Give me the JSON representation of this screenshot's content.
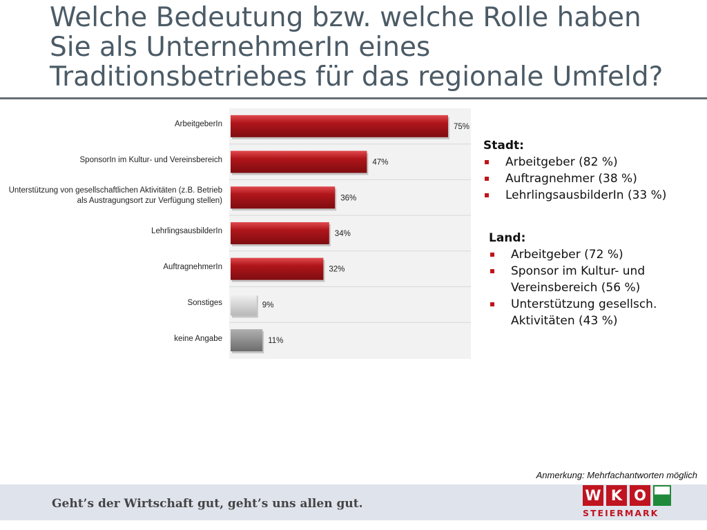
{
  "title": {
    "lines": [
      "Welche Bedeutung bzw. welche Rolle haben",
      "Sie als UnternehmerIn eines",
      "Traditionsbetriebes für das regionale Umfeld?"
    ]
  },
  "chart_data": {
    "type": "bar",
    "orientation": "horizontal",
    "categories": [
      "ArbeitgeberIn",
      "SponsorIn im Kultur- und Vereinsbereich",
      "Unterstützung von gesellschaftlichen Aktivitäten (z.B. Betrieb als Austragungsort zur Verfügung stellen)",
      "LehrlingsausbilderIn",
      "AuftragnehmerIn",
      "Sonstiges",
      "keine Angabe"
    ],
    "category_label_lines": [
      [
        "ArbeitgeberIn"
      ],
      [
        "SponsorIn im Kultur- und Vereinsbereich"
      ],
      [
        "Unterstützung von gesellschaftlichen Aktivitäten (z.B. Betrieb",
        "als Austragungsort zur Verfügung stellen)"
      ],
      [
        "LehrlingsausbilderIn"
      ],
      [
        "AuftragnehmerIn"
      ],
      [
        "Sonstiges"
      ],
      [
        "keine Angabe"
      ]
    ],
    "values": [
      75,
      47,
      36,
      34,
      32,
      9,
      11
    ],
    "value_labels": [
      "75%",
      "47%",
      "36%",
      "34%",
      "32%",
      "9%",
      "11%"
    ],
    "bar_colors": [
      "#b0161b",
      "#b0161b",
      "#b0161b",
      "#b0161b",
      "#b0161b",
      "#d4d4d4",
      "#8e8e8e"
    ],
    "xlim": [
      0,
      80
    ],
    "grid": true,
    "legend": "none"
  },
  "panels": {
    "stadt": {
      "heading": "Stadt:",
      "items": [
        "Arbeitgeber (82 %)",
        "Auftragnehmer (38 %)",
        "LehrlingsausbilderIn (33 %)"
      ]
    },
    "land": {
      "heading": "Land:",
      "items": [
        [
          "Arbeitgeber (72 %)"
        ],
        [
          "Sponsor im Kultur- und",
          "Vereinsbereich (56 %)"
        ],
        [
          "Unterstützung gesellsch.",
          "Aktivitäten (43 %)"
        ]
      ]
    }
  },
  "note": "Anmerkung: Mehrfachantworten möglich",
  "footer": {
    "slogan": "Geht’s der Wirtschaft gut, geht’s uns allen gut.",
    "logo_letters": [
      "W",
      "K",
      "O"
    ],
    "logo_subtitle": "STEIERMARK"
  },
  "colors": {
    "accent_red": "#c0141c",
    "title_gray": "#4b5b66",
    "footer_band": "#dfe3ec",
    "logo_green": "#1f8a3a"
  }
}
